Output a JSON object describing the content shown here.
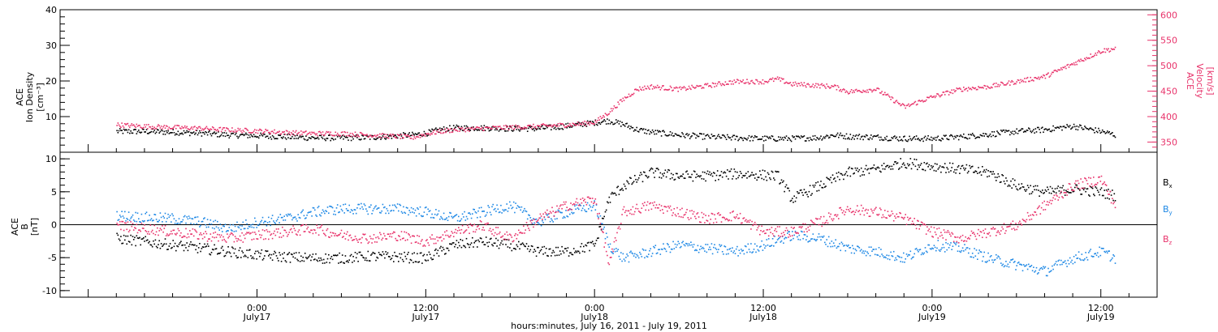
{
  "colors": {
    "black": "#000000",
    "pink": "#e8336b",
    "blue": "#1e88e5"
  },
  "chart_data": [
    {
      "type": "scatter",
      "panel": "plasma",
      "ylabel_left": [
        "ACE",
        "Ion Density",
        "[cm⁻³]"
      ],
      "ylabel_right": [
        "ACE",
        "Velocity",
        "[km/s]"
      ],
      "ylim_left": [
        0,
        40
      ],
      "yticks_left": [
        10,
        20,
        30,
        40
      ],
      "ylim_right": [
        330,
        610
      ],
      "yticks_right": [
        350,
        400,
        450,
        500,
        550,
        600
      ],
      "series": [
        {
          "axis": "left",
          "color": "black",
          "x": [
            -10,
            -8,
            -6,
            -4,
            -2,
            0,
            2,
            4,
            6,
            8,
            10,
            11,
            12,
            13,
            14,
            16,
            18,
            20,
            22,
            23,
            24,
            25,
            26,
            27,
            28,
            30,
            32,
            34,
            36,
            38,
            40,
            41,
            42,
            44,
            46,
            48,
            50,
            52,
            54,
            56,
            58,
            60,
            61
          ],
          "y": [
            6,
            6,
            5.8,
            5.5,
            5,
            4.8,
            4.5,
            4.2,
            4.2,
            4.3,
            4.8,
            5,
            5.5,
            6.5,
            7,
            7,
            6.8,
            6.8,
            7.5,
            8,
            8.5,
            9,
            8,
            6.5,
            5.8,
            5,
            4.5,
            4.2,
            4,
            4,
            4.3,
            5,
            4.6,
            4.4,
            4,
            4,
            4.5,
            5.2,
            6,
            6.5,
            7.5,
            6,
            5
          ]
        },
        {
          "axis": "right",
          "color": "pink",
          "x": [
            -10,
            -8,
            -6,
            -4,
            -2,
            0,
            2,
            4,
            6,
            8,
            10,
            11,
            12,
            13,
            14,
            16,
            18,
            20,
            22,
            23,
            24,
            25,
            26,
            27,
            28,
            30,
            32,
            34,
            36,
            37,
            38,
            40,
            41,
            42,
            44,
            46,
            48,
            50,
            52,
            54,
            56,
            58,
            60,
            61
          ],
          "y": [
            385,
            382,
            380,
            378,
            375,
            373,
            370,
            368,
            368,
            365,
            362,
            360,
            367,
            372,
            375,
            378,
            380,
            382,
            385,
            387,
            390,
            410,
            435,
            455,
            460,
            455,
            462,
            470,
            470,
            475,
            465,
            462,
            460,
            450,
            455,
            420,
            440,
            455,
            460,
            470,
            480,
            505,
            530,
            535
          ]
        }
      ]
    },
    {
      "type": "scatter",
      "panel": "field",
      "ylabel_left": [
        "ACE",
        "B",
        "[nT]"
      ],
      "ylim": [
        -11,
        11
      ],
      "yticks": [
        -10,
        -5,
        0,
        5,
        10
      ],
      "legend": [
        {
          "base": "B",
          "sub": "x",
          "color": "black"
        },
        {
          "base": "B",
          "sub": "y",
          "color": "blue"
        },
        {
          "base": "B",
          "sub": "z",
          "color": "pink"
        }
      ],
      "series": [
        {
          "name": "Bx",
          "color": "black",
          "x": [
            -10,
            -8,
            -6,
            -4,
            -2,
            0,
            2,
            4,
            6,
            8,
            10,
            12,
            14,
            16,
            18,
            20,
            22,
            23,
            24,
            25,
            26,
            28,
            30,
            32,
            34,
            36,
            37,
            38,
            40,
            42,
            44,
            46,
            48,
            50,
            52,
            54,
            56,
            58,
            60,
            61
          ],
          "y": [
            -2,
            -2.5,
            -3,
            -3.5,
            -4,
            -4.5,
            -4.8,
            -5,
            -5,
            -4.7,
            -4.8,
            -5,
            -3,
            -2.5,
            -3,
            -4,
            -4,
            -3.5,
            -3,
            4,
            6,
            8,
            7.5,
            7.5,
            7.8,
            7.6,
            7.5,
            4,
            6,
            8,
            8.5,
            9.5,
            9,
            8.5,
            8,
            6,
            5,
            5.5,
            5,
            4.5
          ]
        },
        {
          "name": "By",
          "color": "blue",
          "x": [
            -10,
            -8,
            -6,
            -4,
            -2,
            0,
            2,
            4,
            6,
            8,
            10,
            12,
            14,
            16,
            18,
            20,
            22,
            24,
            25,
            26,
            28,
            30,
            32,
            34,
            36,
            38,
            40,
            42,
            44,
            46,
            48,
            50,
            52,
            54,
            56,
            58,
            60,
            61
          ],
          "y": [
            1.5,
            1.2,
            1,
            0.5,
            -0.5,
            0.5,
            1,
            2,
            2.5,
            2.5,
            2.5,
            2,
            1,
            2,
            3,
            0.5,
            2,
            3,
            -3,
            -5,
            -4,
            -3,
            -3.5,
            -4,
            -3,
            -1.5,
            -2,
            -3.5,
            -4,
            -5,
            -3,
            -3.5,
            -5,
            -6,
            -7,
            -5,
            -4,
            -5
          ]
        },
        {
          "name": "Bz",
          "color": "pink",
          "x": [
            -10,
            -8,
            -6,
            -4,
            -2,
            0,
            2,
            4,
            6,
            8,
            10,
            12,
            14,
            16,
            18,
            20,
            22,
            24,
            25,
            26,
            28,
            30,
            32,
            34,
            36,
            38,
            40,
            42,
            44,
            46,
            48,
            50,
            52,
            54,
            56,
            58,
            60,
            61
          ],
          "y": [
            0,
            -0.5,
            -1,
            -1.5,
            -2,
            -1.5,
            -1,
            -0.5,
            -1.5,
            -2,
            -1.5,
            -2.5,
            -1,
            0,
            -2,
            1,
            3,
            4,
            -6,
            2,
            3,
            2,
            1,
            1.5,
            -1,
            -1,
            0.5,
            2.5,
            2,
            1,
            -1,
            -2,
            -1,
            0,
            3,
            6,
            7,
            3
          ]
        }
      ]
    }
  ],
  "xaxis": {
    "xlim": [
      -14,
      64
    ],
    "major_ticks": [
      {
        "x": 0,
        "time": "0:00",
        "date": "July17"
      },
      {
        "x": 12,
        "time": "12:00",
        "date": "July17"
      },
      {
        "x": 24,
        "time": "0:00",
        "date": "July18"
      },
      {
        "x": 36,
        "time": "12:00",
        "date": "July18"
      },
      {
        "x": 48,
        "time": "0:00",
        "date": "July19"
      },
      {
        "x": 60,
        "time": "12:00",
        "date": "July19"
      }
    ],
    "title": "hours:minutes, July 16, 2011 - July 19, 2011"
  }
}
